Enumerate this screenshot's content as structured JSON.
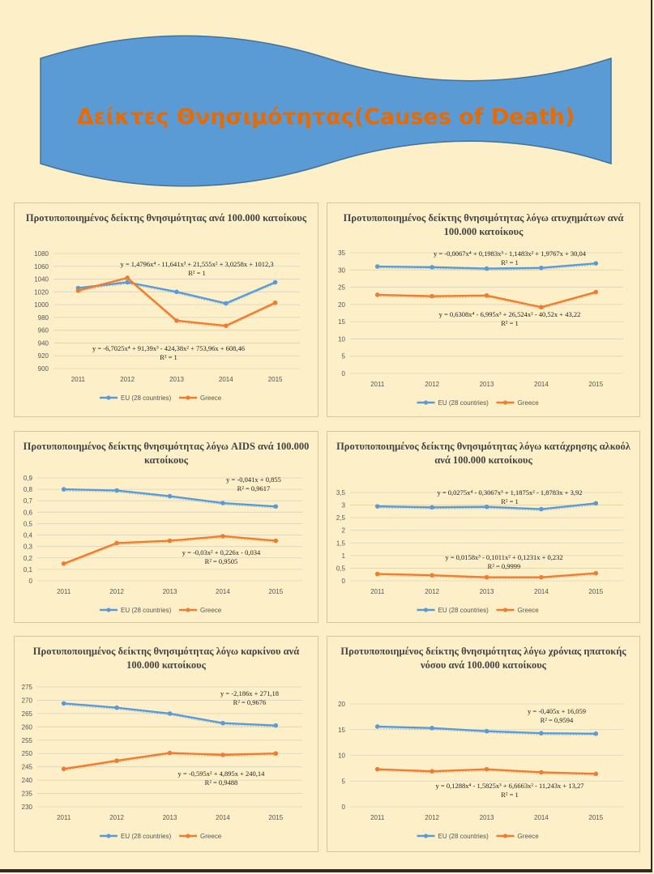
{
  "banner": {
    "title": "Δείκτες Θνησιμότητας(Causes of Death)"
  },
  "colors": {
    "eu": "#5b9bd5",
    "greece": "#ed7d31",
    "banner_fill": "#5b9bd5",
    "banner_text": "#e36c0a"
  },
  "chart_data": [
    {
      "type": "line",
      "title": "Προτυποποιημένος δείκτης θνησιμότητας ανά 100.000 κατοίκους",
      "categories": [
        "2011",
        "2012",
        "2013",
        "2014",
        "2015"
      ],
      "ylim": [
        900,
        1080
      ],
      "yticks": [
        "900",
        "920",
        "940",
        "960",
        "980",
        "1000",
        "1020",
        "1040",
        "1060",
        "1080"
      ],
      "series": [
        {
          "name": "EU (28 countries)",
          "values": [
            1026,
            1035,
            1020,
            1002,
            1035
          ]
        },
        {
          "name": "Greece",
          "values": [
            1022,
            1042,
            975,
            967,
            1003
          ]
        }
      ],
      "annotations": [
        {
          "text": "y = 1,4796x⁴ - 11,641x³ + 21,555x² + 3,0258x + 1012,3",
          "r2": "R² = 1"
        },
        {
          "text": "y = -6,7025x⁴ + 91,39x³ - 424,38x² + 753,96x + 608,46",
          "r2": "R² = 1"
        }
      ]
    },
    {
      "type": "line",
      "title": "Προτυποποιημένος δείκτης θνησιμότητας λόγω ατυχημάτων ανά 100.000 κατοίκους",
      "categories": [
        "2011",
        "2012",
        "2013",
        "2014",
        "2015"
      ],
      "ylim": [
        0,
        35
      ],
      "yticks": [
        "0",
        "5",
        "10",
        "15",
        "20",
        "25",
        "30",
        "35"
      ],
      "series": [
        {
          "name": "EU (28 countries)",
          "values": [
            31.0,
            30.8,
            30.4,
            30.6,
            31.9
          ]
        },
        {
          "name": "Greece",
          "values": [
            22.8,
            22.4,
            22.6,
            19.2,
            23.6
          ]
        }
      ],
      "annotations": [
        {
          "text": "y = -0,0067x⁴ + 0,1983x³ - 1,1483x² + 1,9767x + 30,04",
          "r2": "R² = 1"
        },
        {
          "text": "y = 0,6308x⁴ - 6,995x³ + 26,524x² - 40,52x + 43,22",
          "r2": "R² = 1"
        }
      ]
    },
    {
      "type": "line",
      "title": "Προτυποποιημένος δείκτης θνησιμότητας λόγω AIDS ανά 100.000 κατοίκους",
      "categories": [
        "2011",
        "2012",
        "2013",
        "2014",
        "2015"
      ],
      "ylim": [
        0,
        0.9
      ],
      "yticks": [
        "0",
        "0,1",
        "0,2",
        "0,3",
        "0,4",
        "0,5",
        "0,6",
        "0,7",
        "0,8",
        "0,9"
      ],
      "series": [
        {
          "name": "EU (28 countries)",
          "values": [
            0.8,
            0.79,
            0.74,
            0.68,
            0.65
          ]
        },
        {
          "name": "Greece",
          "values": [
            0.15,
            0.33,
            0.35,
            0.39,
            0.35
          ]
        }
      ],
      "annotations": [
        {
          "text": "y = -0,041x + 0,855",
          "r2": "R² = 0,9617"
        },
        {
          "text": "y = -0,03x² + 0,226x - 0,034",
          "r2": "R² = 0,9505"
        }
      ]
    },
    {
      "type": "line",
      "title": "Προτυποποιημένος δείκτης θνησιμότητας λόγω κατάχρησης αλκοόλ ανά 100.000 κατοίκους",
      "categories": [
        "2011",
        "2012",
        "2013",
        "2014",
        "2015"
      ],
      "ylim": [
        0,
        3.5
      ],
      "yticks": [
        "0",
        "0,5",
        "1",
        "1,5",
        "2",
        "2,5",
        "3",
        "3,5"
      ],
      "series": [
        {
          "name": "EU (28 countries)",
          "values": [
            2.95,
            2.91,
            2.93,
            2.84,
            3.07
          ]
        },
        {
          "name": "Greece",
          "values": [
            0.27,
            0.22,
            0.14,
            0.14,
            0.3
          ]
        }
      ],
      "annotations": [
        {
          "text": "y = 0,0275x⁴ - 0,3067x³ + 1,1875x² - 1,8783x + 3,92",
          "r2": "R² = 1"
        },
        {
          "text": "y = 0,0158x³ - 0,1011x² + 0,1231x + 0,232",
          "r2": "R² = 0,9999"
        }
      ]
    },
    {
      "type": "line",
      "title": "Προτυποποιημένος δείκτης θνησιμότητας λόγω καρκίνου ανά 100.000 κατοίκους",
      "categories": [
        "2011",
        "2012",
        "2013",
        "2014",
        "2015"
      ],
      "ylim": [
        230,
        275
      ],
      "yticks": [
        "230",
        "235",
        "240",
        "245",
        "250",
        "255",
        "260",
        "265",
        "270",
        "275"
      ],
      "series": [
        {
          "name": "EU (28 countries)",
          "values": [
            268.8,
            267.2,
            265.0,
            261.4,
            260.5
          ]
        },
        {
          "name": "Greece",
          "values": [
            244.2,
            247.3,
            250.2,
            249.5,
            250.0
          ]
        }
      ],
      "annotations": [
        {
          "text": "y = -2,186x + 271,18",
          "r2": "R² = 0,9676"
        },
        {
          "text": "y = -0,595x² + 4,895x + 240,14",
          "r2": "R² = 0,9488"
        }
      ]
    },
    {
      "type": "line",
      "title": "Προτυποποιημένος δείκτης θνησιμότητας λόγω χρόνιας ηπατοκής νόσου ανά 100.000 κατοίκους",
      "categories": [
        "2011",
        "2012",
        "2013",
        "2014",
        "2015"
      ],
      "ylim": [
        0,
        20
      ],
      "yticks": [
        "0",
        "5",
        "10",
        "15",
        "20"
      ],
      "series": [
        {
          "name": "EU (28 countries)",
          "values": [
            15.6,
            15.3,
            14.7,
            14.3,
            14.2
          ]
        },
        {
          "name": "Greece",
          "values": [
            7.3,
            6.9,
            7.3,
            6.7,
            6.4
          ]
        }
      ],
      "annotations": [
        {
          "text": "y = -0,405x + 16,059",
          "r2": "R² = 0,9594"
        },
        {
          "text": "y = 0,1288x⁴ - 1,5825x³ + 6,6663x² - 11,243x + 13,27",
          "r2": "R² = 1"
        }
      ]
    }
  ]
}
